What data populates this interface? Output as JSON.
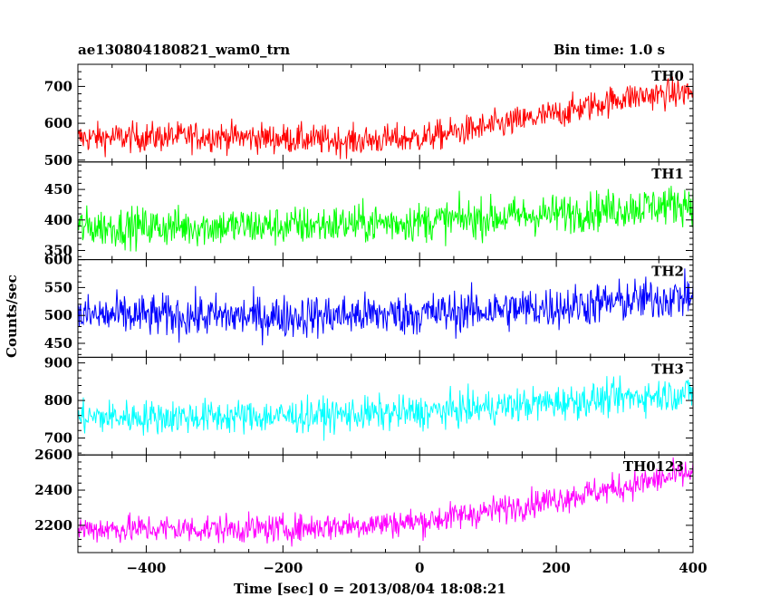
{
  "header": {
    "title": "ae130804180821_wam0_trn",
    "bin_time": "Bin time: 1.0 s"
  },
  "colors": {
    "TH0": "#ff0000",
    "TH1": "#00ff00",
    "TH2": "#0000ff",
    "TH3": "#00ffff",
    "TH0123": "#ff00ff",
    "axes": "#000000",
    "background": "#ffffff"
  },
  "chart_data": {
    "type": "line",
    "xlabel": "Time [sec] 0 = 2013/08/04 18:08:21",
    "ylabel": "Counts/sec",
    "xlim": [
      -500,
      400
    ],
    "x_ticks": [
      -400,
      -200,
      0,
      200,
      400
    ],
    "x_tick_labels": [
      "−400",
      "−200",
      "0",
      "200",
      "400"
    ],
    "x_sampling": "1.0 s bins from -500 to 400",
    "series": [
      {
        "name": "TH0",
        "ylim": [
          495,
          760
        ],
        "y_ticks": [
          500,
          600,
          700
        ],
        "trend_x": [
          -500,
          -300,
          -100,
          0,
          100,
          200,
          300,
          400
        ],
        "trend_y": [
          560,
          565,
          552,
          560,
          590,
          625,
          670,
          685
        ],
        "noise_amplitude": 40
      },
      {
        "name": "TH1",
        "ylim": [
          335,
          495
        ],
        "y_ticks": [
          350,
          400,
          450
        ],
        "trend_x": [
          -500,
          -200,
          0,
          200,
          400
        ],
        "trend_y": [
          388,
          390,
          397,
          410,
          428
        ],
        "noise_amplitude": 32
      },
      {
        "name": "TH2",
        "ylim": [
          425,
          600
        ],
        "y_ticks": [
          450,
          500,
          550,
          600
        ],
        "trend_x": [
          -500,
          -200,
          0,
          200,
          400
        ],
        "trend_y": [
          500,
          498,
          503,
          515,
          535
        ],
        "noise_amplitude": 38
      },
      {
        "name": "TH3",
        "ylim": [
          655,
          915
        ],
        "y_ticks": [
          700,
          800,
          900
        ],
        "trend_x": [
          -500,
          -200,
          0,
          200,
          400
        ],
        "trend_y": [
          755,
          758,
          768,
          795,
          820
        ],
        "noise_amplitude": 45
      },
      {
        "name": "TH0123",
        "ylim": [
          2045,
          2600
        ],
        "y_ticks": [
          2200,
          2400,
          2600
        ],
        "trend_x": [
          -500,
          -200,
          0,
          100,
          200,
          300,
          400
        ],
        "trend_y": [
          2180,
          2180,
          2220,
          2280,
          2350,
          2420,
          2500
        ],
        "noise_amplitude": 80
      }
    ]
  }
}
